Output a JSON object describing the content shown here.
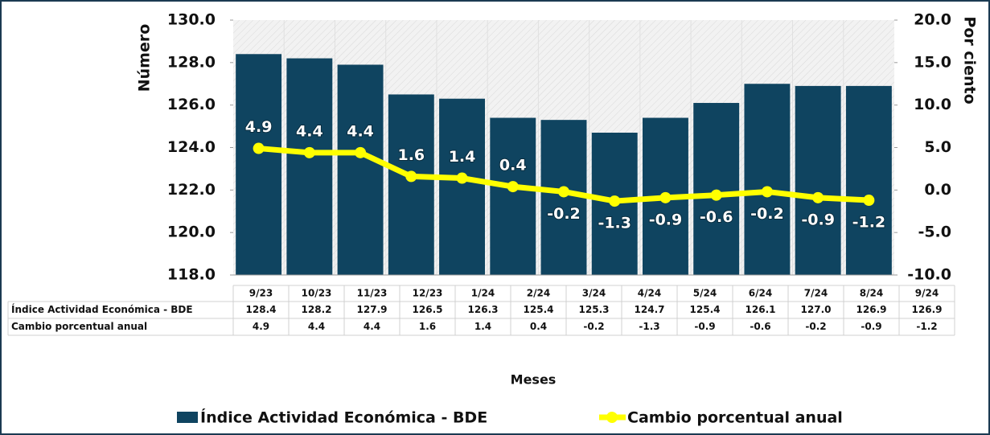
{
  "chart_data": {
    "type": "bar",
    "categories": [
      "9/23",
      "10/23",
      "11/23",
      "12/23",
      "1/24",
      "2/24",
      "3/24",
      "4/24",
      "5/24",
      "6/24",
      "7/24",
      "8/24",
      "9/24"
    ],
    "series": [
      {
        "name": "Índice Actividad Económica - BDE",
        "type": "bar",
        "axis": "y",
        "color": "#0f4460",
        "values": [
          128.4,
          128.2,
          127.9,
          126.5,
          126.3,
          125.4,
          125.3,
          124.7,
          125.4,
          126.1,
          127.0,
          126.9,
          126.9
        ],
        "value_labels": [
          "128.4",
          "128.2",
          "127.9",
          "126.5",
          "126.3",
          "125.4",
          "125.3",
          "124.7",
          "125.4",
          "126.1",
          "127.0",
          "126.9",
          "126.9"
        ]
      },
      {
        "name": "Cambio porcentual anual",
        "type": "line",
        "axis": "y2",
        "color": "#ffff00",
        "values": [
          4.9,
          4.4,
          4.4,
          1.6,
          1.4,
          0.4,
          -0.2,
          -1.3,
          -0.9,
          -0.6,
          -0.2,
          -0.9,
          -1.2
        ],
        "value_labels": [
          "4.9",
          "4.4",
          "4.4",
          "1.6",
          "1.4",
          "0.4",
          "-0.2",
          "-1.3",
          "-0.9",
          "-0.6",
          "-0.2",
          "-0.9",
          "-1.2"
        ]
      }
    ],
    "xlabel": "Meses",
    "ylabel": "Número",
    "y2label": "Por ciento",
    "ylim": [
      118,
      130
    ],
    "yticks": [
      {
        "value": 118,
        "label": "118.0"
      },
      {
        "value": 120,
        "label": "120.0"
      },
      {
        "value": 122,
        "label": "122.0"
      },
      {
        "value": 124,
        "label": "124.0"
      },
      {
        "value": 126,
        "label": "126.0"
      },
      {
        "value": 128,
        "label": "128.0"
      },
      {
        "value": 130,
        "label": "130.0"
      }
    ],
    "y2lim": [
      -10,
      20
    ],
    "y2ticks": [
      {
        "value": -10,
        "label": "-10.0"
      },
      {
        "value": -5,
        "label": "-5.0"
      },
      {
        "value": 0,
        "label": "0.0"
      },
      {
        "value": 5,
        "label": "5.0"
      },
      {
        "value": 10,
        "label": "10.0"
      },
      {
        "value": 15,
        "label": "15.0"
      },
      {
        "value": 20,
        "label": "20.0"
      }
    ],
    "legend": "bottom",
    "data_table": true
  }
}
